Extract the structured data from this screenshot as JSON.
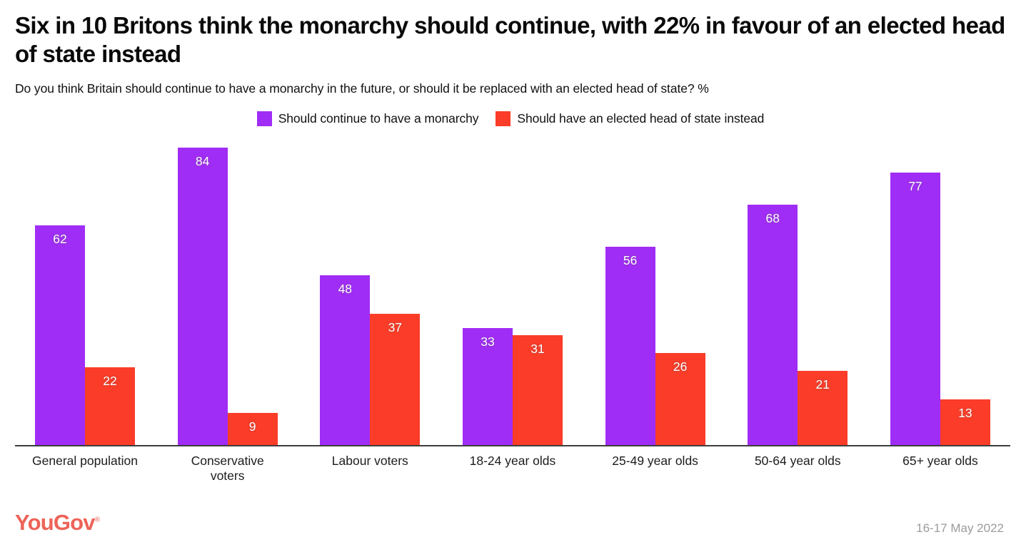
{
  "header": {
    "title": "Six in 10 Britons think the monarchy should continue, with 22% in favour of an elected head of state instead",
    "subtitle": "Do you think Britain should continue to have a monarchy in the future, or should it be replaced with an elected head of state? %"
  },
  "chart_data": {
    "type": "bar",
    "title": "Six in 10 Britons think the monarchy should continue, with 22% in favour of an elected head of state instead",
    "subtitle": "Do you think Britain should continue to have a monarchy in the future, or should it be replaced with an elected head of state? %",
    "categories": [
      "General population",
      "Conservative\nvoters",
      "Labour voters",
      "18-24 year olds",
      "25-49 year olds",
      "50-64 year olds",
      "65+ year olds"
    ],
    "series": [
      {
        "name": "Should continue to have a monarchy",
        "color": "#A02DF5",
        "values": [
          62,
          84,
          48,
          33,
          56,
          68,
          77
        ]
      },
      {
        "name": "Should have an elected head of state instead",
        "color": "#FA3C28",
        "values": [
          22,
          9,
          37,
          31,
          26,
          21,
          13
        ]
      }
    ],
    "unit": "%",
    "ylim": [
      0,
      100
    ],
    "grid": false,
    "value_labels": true,
    "legend_position": "top-center",
    "axis_color": "#3d3d3d"
  },
  "footer": {
    "logo_text": "YouGov",
    "logo_registered": "®",
    "logo_color": "#EE6358",
    "date": "16-17 May 2022"
  }
}
